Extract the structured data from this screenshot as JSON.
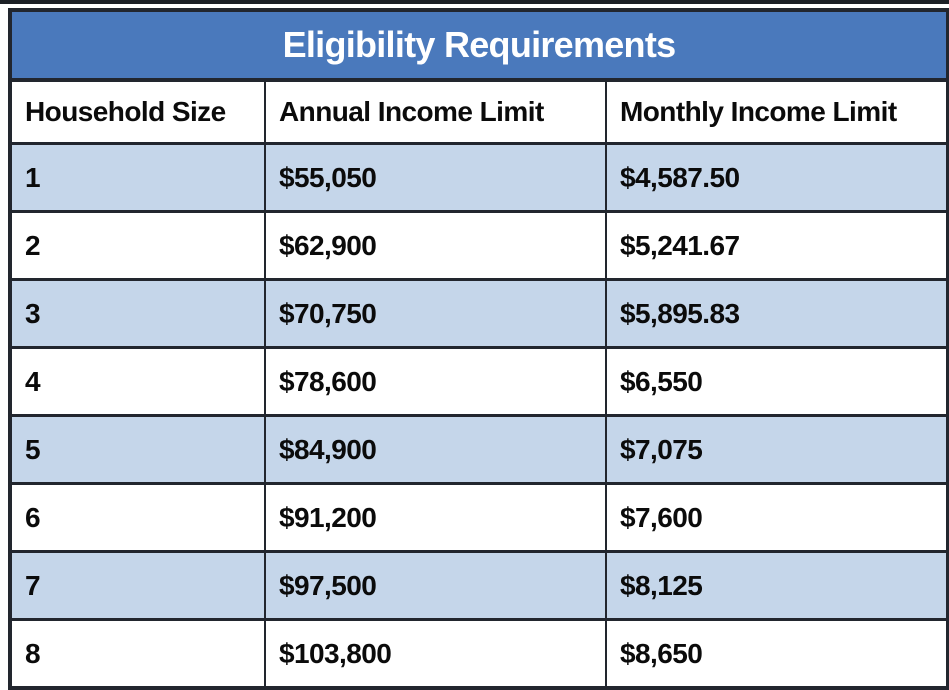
{
  "table": {
    "title": "Eligibility Requirements",
    "columns": [
      "Household Size",
      "Annual Income Limit",
      "Monthly Income Limit"
    ],
    "rows": [
      [
        "1",
        "$55,050",
        "$4,587.50"
      ],
      [
        "2",
        "$62,900",
        "$5,241.67"
      ],
      [
        "3",
        "$70,750",
        "$5,895.83"
      ],
      [
        "4",
        "$78,600",
        "$6,550"
      ],
      [
        "5",
        "$84,900",
        "$7,075"
      ],
      [
        "6",
        "$91,200",
        "$7,600"
      ],
      [
        "7",
        "$97,500",
        "$8,125"
      ],
      [
        "8",
        "$103,800",
        "$8,650"
      ]
    ]
  },
  "colors": {
    "title_bar_bg": "#4a79bc",
    "title_text": "#ffffff",
    "alt_row_bg": "#c5d6ea",
    "plain_row_bg": "#ffffff",
    "border": "#22262e",
    "cell_text": "#0b0b0b"
  },
  "chart_data": {
    "type": "table",
    "title": "Eligibility Requirements",
    "columns": [
      "Household Size",
      "Annual Income Limit",
      "Monthly Income Limit"
    ],
    "rows": [
      {
        "household_size": 1,
        "annual_income_limit": "$55,050",
        "monthly_income_limit": "$4,587.50"
      },
      {
        "household_size": 2,
        "annual_income_limit": "$62,900",
        "monthly_income_limit": "$5,241.67"
      },
      {
        "household_size": 3,
        "annual_income_limit": "$70,750",
        "monthly_income_limit": "$5,895.83"
      },
      {
        "household_size": 4,
        "annual_income_limit": "$78,600",
        "monthly_income_limit": "$6,550"
      },
      {
        "household_size": 5,
        "annual_income_limit": "$84,900",
        "monthly_income_limit": "$7,075"
      },
      {
        "household_size": 6,
        "annual_income_limit": "$91,200",
        "monthly_income_limit": "$7,600"
      },
      {
        "household_size": 7,
        "annual_income_limit": "$97,500",
        "monthly_income_limit": "$8,125"
      },
      {
        "household_size": 8,
        "annual_income_limit": "$103,800",
        "monthly_income_limit": "$8,650"
      }
    ],
    "layout": {
      "striped_rows": "odd household sizes shaded light blue",
      "header_style": "merged blue title bar above bold black column headers"
    }
  }
}
